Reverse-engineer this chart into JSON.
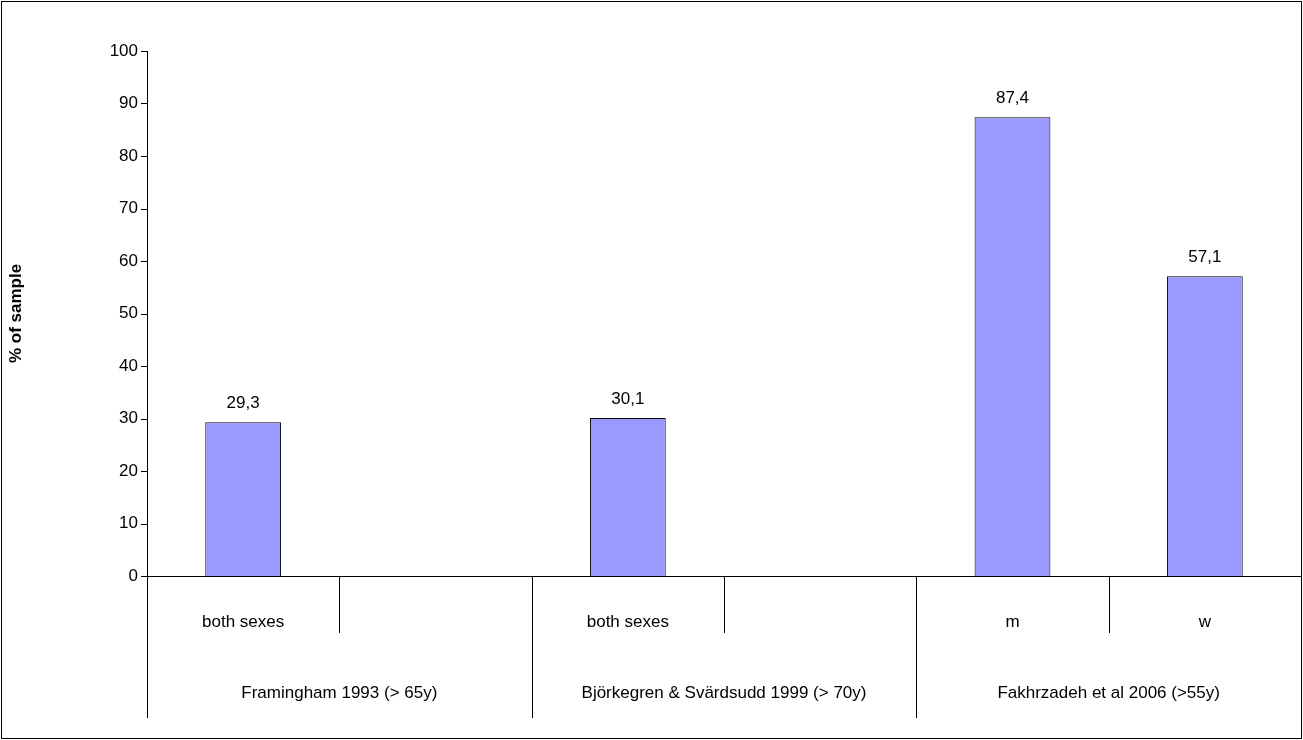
{
  "chart_data": {
    "type": "bar",
    "ylabel": "% of sample",
    "categories": [
      "both sexes",
      null,
      "both sexes",
      null,
      "m",
      "w"
    ],
    "values": [
      29.3,
      null,
      30.1,
      null,
      87.4,
      57.1
    ],
    "value_labels": [
      "29,3",
      null,
      "30,1",
      null,
      "87,4",
      "57,1"
    ],
    "color": "#9999ff",
    "ylim": [
      0,
      100
    ],
    "yticks": [
      0,
      10,
      20,
      30,
      40,
      50,
      60,
      70,
      80,
      90,
      100
    ],
    "annotations": [
      "Framingham 1993 (> 65y)",
      "Björkegren & Svärdsudd 1999 (> 70y)",
      "Fakhrzadeh et al 2006 (>55y)"
    ]
  }
}
